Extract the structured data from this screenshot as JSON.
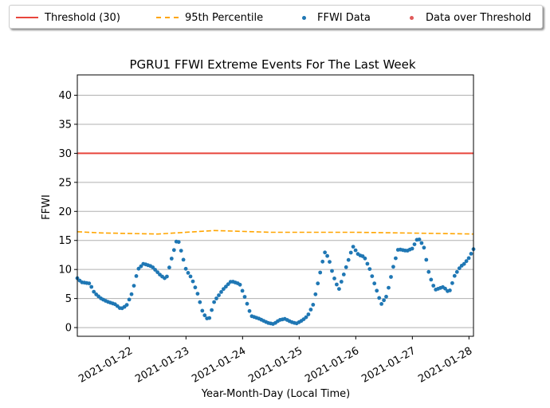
{
  "chart_data": {
    "type": "scatter",
    "title": "PGRU1 FFWI Extreme Events For The Last Week",
    "xlabel": "Year-Month-Day (Local Time)",
    "ylabel": "FFWI",
    "ylim": [
      -1.5,
      43.5
    ],
    "xlim_days": [
      -0.92,
      6.08
    ],
    "date_ticks": [
      "2021-01-22",
      "2021-01-23",
      "2021-01-24",
      "2021-01-25",
      "2021-01-26",
      "2021-01-27",
      "2021-01-28"
    ],
    "y_ticks": [
      0,
      5,
      10,
      15,
      20,
      25,
      30,
      35,
      40
    ],
    "grid": "horizontal",
    "legend_placement": "top",
    "series": [
      {
        "name": "Threshold (30)",
        "kind": "line",
        "style": "solid",
        "color": "#e8453c",
        "value": 30
      },
      {
        "name": "95th Percentile",
        "kind": "line",
        "style": "dashed",
        "color": "#ffa500",
        "points": [
          [
            -0.92,
            16.5
          ],
          [
            -0.5,
            16.3
          ],
          [
            0.5,
            16.1
          ],
          [
            1.5,
            16.7
          ],
          [
            2.5,
            16.4
          ],
          [
            4.0,
            16.4
          ],
          [
            5.5,
            16.2
          ],
          [
            6.08,
            16.1
          ]
        ]
      },
      {
        "name": "FFWI Data",
        "kind": "scatter",
        "color": "#1f77b4",
        "anchors": [
          [
            -0.92,
            8.5
          ],
          [
            -0.85,
            7.8
          ],
          [
            -0.7,
            7.6
          ],
          [
            -0.62,
            6
          ],
          [
            -0.5,
            5
          ],
          [
            -0.4,
            4.5
          ],
          [
            -0.25,
            4
          ],
          [
            -0.15,
            3.2
          ],
          [
            -0.05,
            3.8
          ],
          [
            0.05,
            6
          ],
          [
            0.15,
            10
          ],
          [
            0.25,
            11
          ],
          [
            0.4,
            10.5
          ],
          [
            0.55,
            9
          ],
          [
            0.65,
            8.3
          ],
          [
            0.75,
            12
          ],
          [
            0.85,
            15.5
          ],
          [
            0.92,
            13
          ],
          [
            1.0,
            10
          ],
          [
            1.1,
            8.5
          ],
          [
            1.2,
            6
          ],
          [
            1.3,
            2.5
          ],
          [
            1.4,
            1.2
          ],
          [
            1.5,
            4.5
          ],
          [
            1.65,
            6.5
          ],
          [
            1.8,
            8
          ],
          [
            1.95,
            7.5
          ],
          [
            2.05,
            5
          ],
          [
            2.15,
            2
          ],
          [
            2.3,
            1.5
          ],
          [
            2.45,
            0.8
          ],
          [
            2.55,
            0.6
          ],
          [
            2.65,
            1.3
          ],
          [
            2.75,
            1.5
          ],
          [
            2.85,
            1
          ],
          [
            2.95,
            0.7
          ],
          [
            3.05,
            1.2
          ],
          [
            3.15,
            2
          ],
          [
            3.25,
            4
          ],
          [
            3.35,
            8.5
          ],
          [
            3.45,
            13
          ],
          [
            3.52,
            12
          ],
          [
            3.6,
            9
          ],
          [
            3.7,
            6.5
          ],
          [
            3.8,
            9.5
          ],
          [
            3.95,
            14
          ],
          [
            4.05,
            12.5
          ],
          [
            4.15,
            12.2
          ],
          [
            4.25,
            10
          ],
          [
            4.35,
            7
          ],
          [
            4.45,
            4
          ],
          [
            4.55,
            5.5
          ],
          [
            4.65,
            10
          ],
          [
            4.75,
            13.5
          ],
          [
            4.9,
            13.2
          ],
          [
            5.0,
            13.6
          ],
          [
            5.1,
            15.5
          ],
          [
            5.2,
            14
          ],
          [
            5.3,
            9
          ],
          [
            5.4,
            6.5
          ],
          [
            5.55,
            7
          ],
          [
            5.65,
            6
          ],
          [
            5.75,
            9
          ],
          [
            5.85,
            10.5
          ],
          [
            5.92,
            11
          ],
          [
            6.0,
            12
          ],
          [
            6.08,
            13.5
          ]
        ]
      }
    ]
  }
}
